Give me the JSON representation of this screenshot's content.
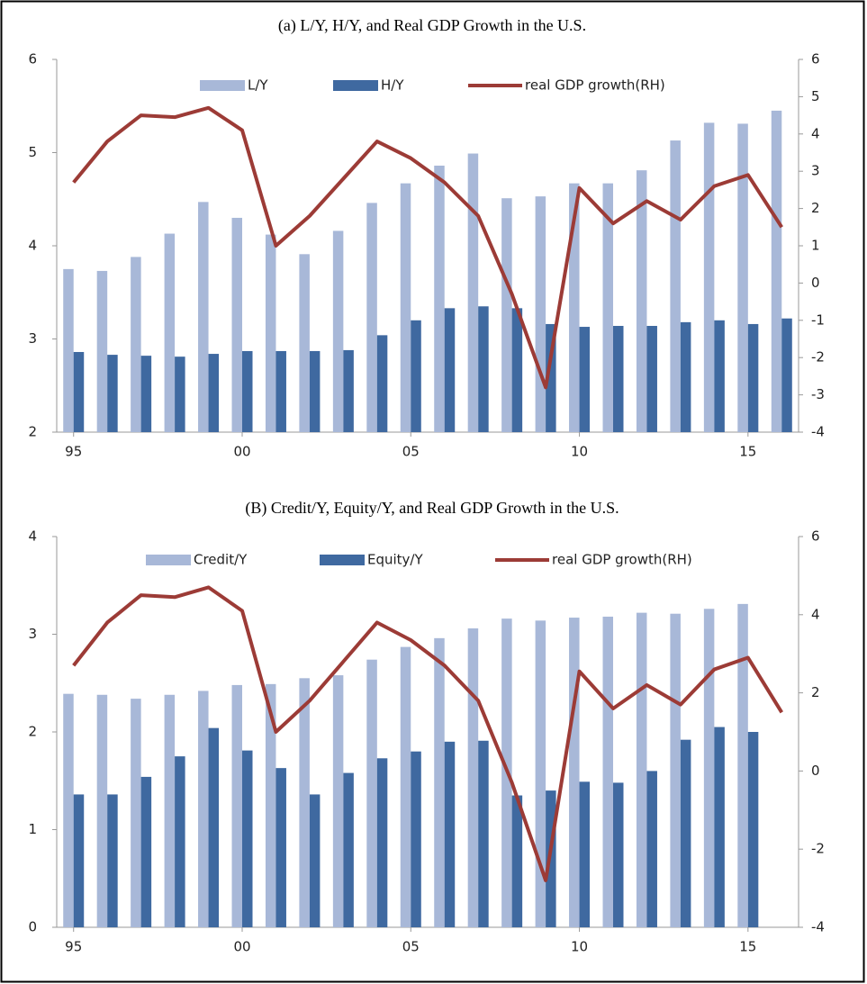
{
  "chart_data": [
    {
      "type": "bar",
      "title": "(a) L/Y, H/Y, and Real GDP Growth in the U.S.",
      "categories": [
        "95",
        null,
        null,
        null,
        null,
        "00",
        null,
        null,
        null,
        null,
        "05",
        null,
        null,
        null,
        null,
        "10",
        null,
        null,
        null,
        null,
        "15",
        null
      ],
      "series": [
        {
          "name": "L/Y",
          "color": "#a8b8d8",
          "type": "bar",
          "values": [
            3.75,
            3.73,
            3.88,
            4.13,
            4.47,
            4.3,
            4.12,
            3.91,
            4.16,
            4.46,
            4.67,
            4.86,
            4.99,
            4.51,
            4.53,
            4.67,
            4.67,
            4.81,
            5.13,
            5.32,
            5.31,
            5.45
          ]
        },
        {
          "name": "H/Y",
          "color": "#3f69a0",
          "type": "bar",
          "values": [
            2.86,
            2.83,
            2.82,
            2.81,
            2.84,
            2.87,
            2.87,
            2.87,
            2.88,
            3.04,
            3.2,
            3.33,
            3.35,
            3.33,
            3.16,
            3.13,
            3.14,
            3.14,
            3.18,
            3.2,
            3.16,
            3.22
          ]
        },
        {
          "name": "real GDP growth(RH)",
          "color": "#9c3b36",
          "type": "line",
          "axis": "y2",
          "values": [
            2.7,
            3.8,
            4.5,
            4.45,
            4.7,
            4.1,
            1.0,
            1.8,
            2.8,
            3.8,
            3.35,
            2.7,
            1.8,
            -0.3,
            -2.8,
            2.55,
            1.6,
            2.2,
            1.7,
            2.6,
            2.9,
            1.5
          ]
        }
      ],
      "ylim": [
        2,
        6
      ],
      "yticks": [
        2,
        3,
        4,
        5,
        6
      ],
      "y2lim": [
        -4,
        6
      ],
      "y2ticks": [
        -4,
        -3,
        -2,
        -1,
        0,
        1,
        2,
        3,
        4,
        5,
        6
      ],
      "grid": false,
      "legend": "top"
    },
    {
      "type": "bar",
      "title": "(B) Credit/Y, Equity/Y, and Real GDP Growth in the U.S.",
      "categories": [
        "95",
        null,
        null,
        null,
        null,
        "00",
        null,
        null,
        null,
        null,
        "05",
        null,
        null,
        null,
        null,
        "10",
        null,
        null,
        null,
        null,
        "15",
        null
      ],
      "series": [
        {
          "name": "Credit/Y",
          "color": "#a8b8d8",
          "type": "bar",
          "values": [
            2.39,
            2.38,
            2.34,
            2.38,
            2.42,
            2.48,
            2.49,
            2.55,
            2.58,
            2.74,
            2.87,
            2.96,
            3.06,
            3.16,
            3.14,
            3.17,
            3.18,
            3.22,
            3.21,
            3.26,
            3.31,
            null
          ]
        },
        {
          "name": "Equity/Y",
          "color": "#3f69a0",
          "type": "bar",
          "values": [
            1.36,
            1.36,
            1.54,
            1.75,
            2.04,
            1.81,
            1.63,
            1.36,
            1.58,
            1.73,
            1.8,
            1.9,
            1.91,
            1.35,
            1.4,
            1.49,
            1.48,
            1.6,
            1.92,
            2.05,
            2.0,
            null
          ]
        },
        {
          "name": "real GDP growth(RH)",
          "color": "#9c3b36",
          "type": "line",
          "axis": "y2",
          "values": [
            2.7,
            3.8,
            4.5,
            4.45,
            4.7,
            4.1,
            1.0,
            1.8,
            2.8,
            3.8,
            3.35,
            2.7,
            1.8,
            -0.3,
            -2.8,
            2.55,
            1.6,
            2.2,
            1.7,
            2.6,
            2.9,
            1.5
          ]
        }
      ],
      "ylim": [
        0,
        4
      ],
      "yticks": [
        0,
        1,
        2,
        3,
        4
      ],
      "y2lim": [
        -4,
        6
      ],
      "y2ticks": [
        -4,
        -2,
        0,
        2,
        4,
        6
      ],
      "grid": false,
      "legend": "top"
    }
  ]
}
